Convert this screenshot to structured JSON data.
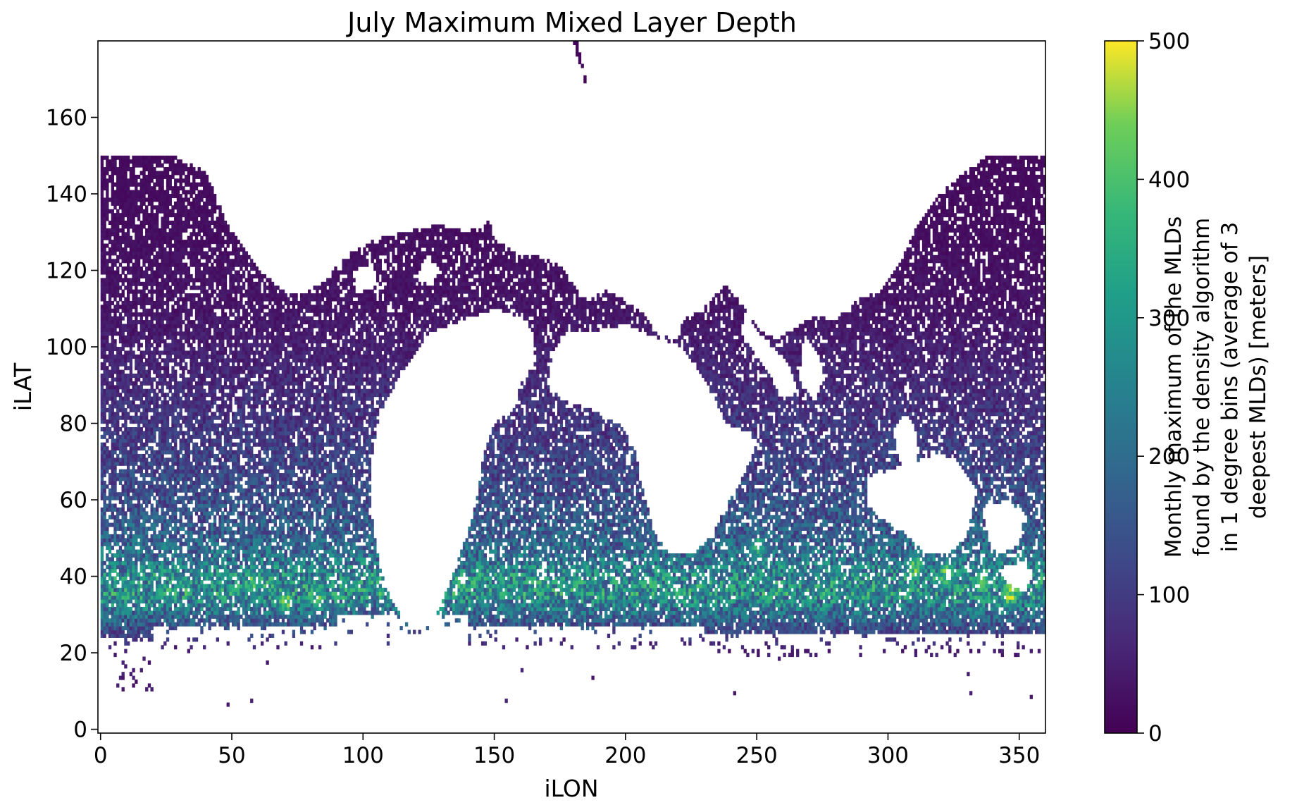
{
  "chart_data": {
    "type": "heatmap",
    "title": "July Maximum Mixed Layer Depth",
    "xlabel": "iLON",
    "ylabel": "iLAT",
    "xlim": [
      -1,
      360
    ],
    "ylim": [
      -1,
      180
    ],
    "xticks": [
      0,
      50,
      100,
      150,
      200,
      250,
      300,
      350
    ],
    "yticks": [
      0,
      20,
      40,
      60,
      80,
      100,
      120,
      140,
      160
    ],
    "colormap": "viridis",
    "colorbar": {
      "label": "Monthly maximum of the MLDs found by the density algorithm in 1 degree bins (average of 3 deepest MLDs) [meters]",
      "label_lines": [
        "Monthly maximum of the MLDs",
        "found by the density algorithm",
        "in 1 degree bins (average of 3",
        "deepest MLDs) [meters]"
      ],
      "range": [
        0,
        500
      ],
      "ticks": [
        0,
        100,
        200,
        300,
        400,
        500
      ]
    },
    "grid": false,
    "legend": "none",
    "mld_profile_by_ilat": [
      {
        "ilat": 20,
        "mld": 40
      },
      {
        "ilat": 25,
        "mld": 110
      },
      {
        "ilat": 30,
        "mld": 200
      },
      {
        "ilat": 35,
        "mld": 270
      },
      {
        "ilat": 40,
        "mld": 250
      },
      {
        "ilat": 45,
        "mld": 200
      },
      {
        "ilat": 50,
        "mld": 165
      },
      {
        "ilat": 60,
        "mld": 130
      },
      {
        "ilat": 70,
        "mld": 105
      },
      {
        "ilat": 80,
        "mld": 85
      },
      {
        "ilat": 90,
        "mld": 65
      },
      {
        "ilat": 100,
        "mld": 45
      },
      {
        "ilat": 110,
        "mld": 30
      },
      {
        "ilat": 130,
        "mld": 20
      },
      {
        "ilat": 150,
        "mld": 15
      },
      {
        "ilat": 175,
        "mld": 10
      }
    ],
    "deep_hotspots": [
      {
        "ilon": 346,
        "ilat": 35,
        "mld": 500
      },
      {
        "ilon": 310,
        "ilat": 42,
        "mld": 460
      },
      {
        "ilon": 322,
        "ilat": 40,
        "mld": 450
      },
      {
        "ilon": 335,
        "ilat": 38,
        "mld": 430
      },
      {
        "ilon": 70,
        "ilat": 33,
        "mld": 440
      },
      {
        "ilon": 82,
        "ilat": 34,
        "mld": 420
      },
      {
        "ilon": 57,
        "ilat": 38,
        "mld": 400
      },
      {
        "ilon": 250,
        "ilat": 47,
        "mld": 380
      }
    ]
  }
}
